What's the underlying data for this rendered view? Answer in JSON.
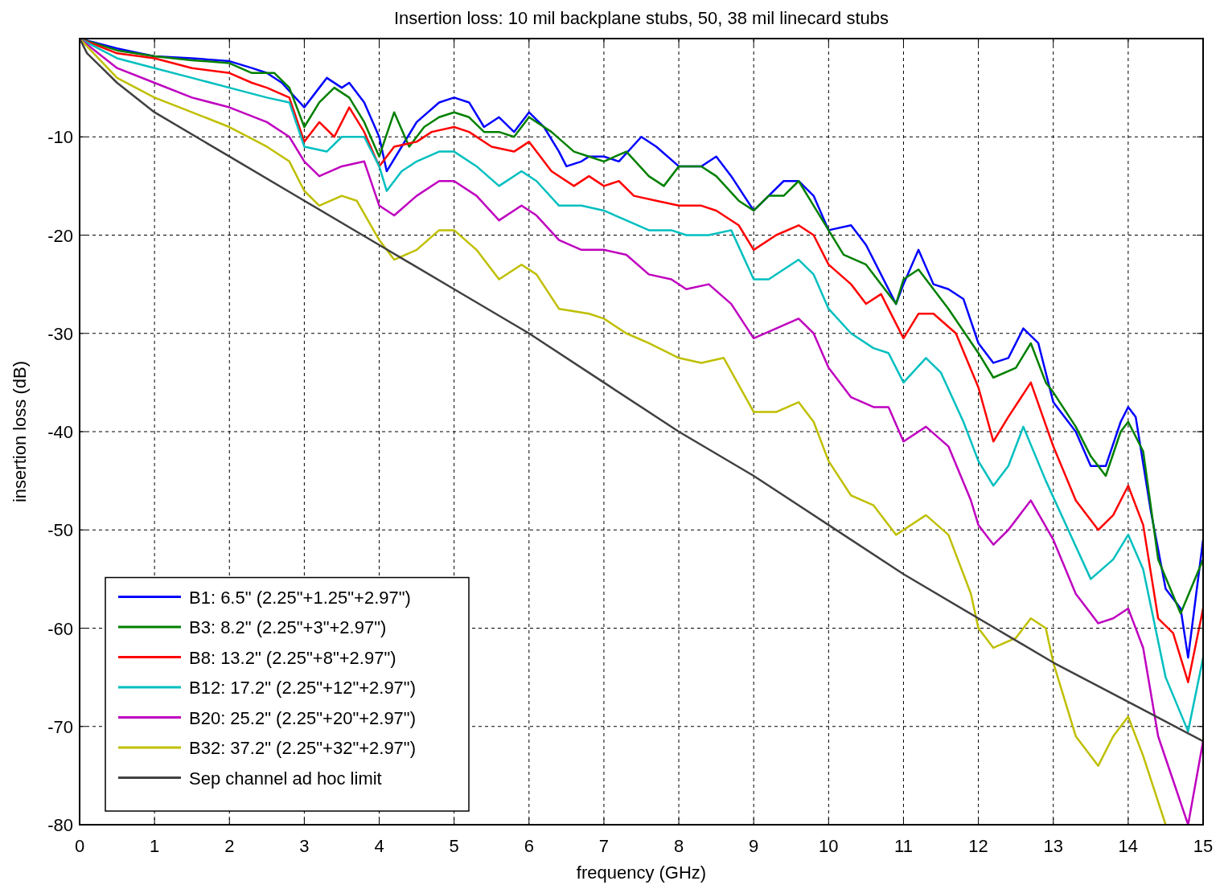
{
  "chart_data": {
    "type": "line",
    "title": "Insertion loss: 10 mil backplane stubs, 50, 38 mil linecard stubs",
    "xlabel": "frequency (GHz)",
    "ylabel": "insertion loss (dB)",
    "xlim": [
      0,
      15
    ],
    "xticks": [
      0,
      1,
      2,
      3,
      4,
      5,
      6,
      7,
      8,
      9,
      10,
      11,
      12,
      13,
      14,
      15
    ],
    "ylim": [
      -80,
      0
    ],
    "yticks": [
      -80,
      -70,
      -60,
      -50,
      -40,
      -30,
      -20,
      -10
    ],
    "grid": true,
    "legend": "bottom left",
    "line_style": "solid",
    "marker": "none",
    "series": [
      {
        "name": "B1: 6.5\" (2.25\"+1.25\"+2.97\")",
        "color": "#0000ff",
        "x": [
          0,
          0.5,
          0.8,
          1,
          1.5,
          2,
          2.3,
          2.5,
          2.7,
          3,
          3.2,
          3.3,
          3.5,
          3.6,
          3.8,
          4,
          4.1,
          4.3,
          4.5,
          4.8,
          5,
          5.2,
          5.4,
          5.6,
          5.8,
          6,
          6.2,
          6.4,
          6.5,
          6.7,
          6.8,
          7,
          7.2,
          7.5,
          7.7,
          8,
          8.3,
          8.5,
          8.7,
          9,
          9.2,
          9.4,
          9.6,
          9.8,
          10,
          10.3,
          10.5,
          10.9,
          11,
          11.2,
          11.4,
          11.6,
          11.8,
          12,
          12.2,
          12.4,
          12.6,
          12.8,
          13,
          13.3,
          13.5,
          13.7,
          13.9,
          14,
          14.1,
          14.3,
          14.5,
          14.7,
          14.8,
          15
        ],
        "values": [
          0,
          -1,
          -1.5,
          -1.8,
          -2,
          -2.3,
          -3,
          -3.5,
          -4.5,
          -7,
          -5,
          -4,
          -5,
          -4.5,
          -6.5,
          -10,
          -13.5,
          -11,
          -8.5,
          -6.5,
          -6,
          -6.5,
          -9,
          -8,
          -9.5,
          -7.5,
          -9,
          -11.5,
          -13,
          -12.5,
          -12,
          -12,
          -12.5,
          -10,
          -11,
          -13,
          -13,
          -12,
          -14,
          -17.5,
          -16,
          -14.5,
          -14.5,
          -16,
          -19.5,
          -19,
          -21,
          -27,
          -25,
          -21.5,
          -25,
          -25.5,
          -26.5,
          -31,
          -33,
          -32.5,
          -29.5,
          -31,
          -37,
          -40,
          -43.5,
          -43.5,
          -39,
          -37.5,
          -38.5,
          -48,
          -56,
          -58,
          -63,
          -51
        ]
      },
      {
        "name": "B3: 8.2\" (2.25\"+3\"+2.97\")",
        "color": "#008000",
        "x": [
          0,
          0.5,
          1,
          1.5,
          2,
          2.3,
          2.6,
          2.8,
          3,
          3.2,
          3.4,
          3.6,
          3.8,
          4,
          4.2,
          4.4,
          4.6,
          4.8,
          5,
          5.2,
          5.4,
          5.6,
          5.8,
          6,
          6.3,
          6.6,
          6.8,
          7,
          7.3,
          7.6,
          7.8,
          8,
          8.3,
          8.5,
          8.8,
          9,
          9.2,
          9.4,
          9.6,
          9.8,
          10,
          10.2,
          10.5,
          10.9,
          11,
          11.2,
          11.4,
          11.6,
          12,
          12.2,
          12.5,
          12.7,
          12.9,
          13,
          13.3,
          13.5,
          13.7,
          13.9,
          14,
          14.2,
          14.4,
          14.7,
          15
        ],
        "values": [
          0,
          -1.2,
          -1.8,
          -2.2,
          -2.5,
          -3.5,
          -3.5,
          -5,
          -9,
          -6.5,
          -5,
          -6,
          -8.5,
          -12,
          -7.5,
          -11,
          -9,
          -8,
          -7.5,
          -8,
          -9.5,
          -9.5,
          -10,
          -8,
          -9.5,
          -11.5,
          -12,
          -12.5,
          -11.5,
          -14,
          -15,
          -13,
          -13,
          -14,
          -16.5,
          -17.5,
          -16,
          -16,
          -14.5,
          -17,
          -19.5,
          -22,
          -23,
          -27,
          -24.5,
          -23.5,
          -25.5,
          -27.5,
          -32,
          -34.5,
          -33.5,
          -31,
          -35,
          -36,
          -39.5,
          -42.5,
          -44.5,
          -40,
          -39,
          -42,
          -53,
          -58.5,
          -53
        ]
      },
      {
        "name": "B8: 13.2\" (2.25\"+8\"+2.97\")",
        "color": "#ff0000",
        "x": [
          0,
          0.5,
          1,
          1.5,
          2,
          2.3,
          2.5,
          2.8,
          3,
          3.2,
          3.4,
          3.6,
          3.8,
          4,
          4.2,
          4.5,
          4.7,
          5,
          5.2,
          5.5,
          5.8,
          6,
          6.3,
          6.6,
          6.8,
          7,
          7.2,
          7.4,
          7.7,
          8,
          8.3,
          8.5,
          8.8,
          9,
          9.3,
          9.6,
          9.8,
          10,
          10.3,
          10.5,
          10.7,
          11,
          11.2,
          11.4,
          11.7,
          12,
          12.2,
          12.4,
          12.7,
          13,
          13.3,
          13.6,
          13.8,
          14,
          14.2,
          14.4,
          14.6,
          14.8,
          15
        ],
        "values": [
          0,
          -1.5,
          -2,
          -3,
          -3.5,
          -4.5,
          -5,
          -6,
          -10.5,
          -8.5,
          -10,
          -7,
          -9.5,
          -13,
          -11,
          -10.5,
          -9.5,
          -9,
          -9.5,
          -11,
          -11.5,
          -10.5,
          -13.5,
          -15,
          -14,
          -15,
          -14.5,
          -16,
          -16.5,
          -17,
          -17,
          -17.5,
          -19,
          -21.5,
          -20,
          -19,
          -20,
          -23,
          -25,
          -27,
          -26,
          -30.5,
          -28,
          -28,
          -30,
          -35.5,
          -41,
          -38.5,
          -35,
          -41.5,
          -47,
          -50,
          -48.5,
          -45.5,
          -49.5,
          -59,
          -60.5,
          -65.5,
          -58
        ]
      },
      {
        "name": "B12: 17.2\" (2.25\"+12\"+2.97\")",
        "color": "#00bfbf",
        "x": [
          0,
          0.5,
          1,
          1.5,
          2,
          2.5,
          2.8,
          3,
          3.3,
          3.5,
          3.8,
          4,
          4.1,
          4.3,
          4.5,
          4.8,
          5,
          5.3,
          5.6,
          5.9,
          6.1,
          6.4,
          6.7,
          7,
          7.3,
          7.6,
          7.9,
          8.1,
          8.4,
          8.7,
          9,
          9.2,
          9.6,
          9.8,
          10,
          10.3,
          10.6,
          10.8,
          11,
          11.3,
          11.5,
          11.8,
          12,
          12.2,
          12.4,
          12.6,
          12.9,
          13.2,
          13.5,
          13.8,
          14,
          14.2,
          14.5,
          14.8,
          15
        ],
        "values": [
          0,
          -2,
          -3,
          -4,
          -5,
          -6,
          -6.5,
          -11,
          -11.5,
          -10,
          -10,
          -13,
          -15.5,
          -13.5,
          -12.5,
          -11.5,
          -11.5,
          -13,
          -15,
          -13.5,
          -14.5,
          -17,
          -17,
          -17.5,
          -18.5,
          -19.5,
          -19.5,
          -20,
          -20,
          -19.5,
          -24.5,
          -24.5,
          -22.5,
          -24,
          -27.5,
          -30,
          -31.5,
          -32,
          -35,
          -32.5,
          -34,
          -39,
          -43,
          -45.5,
          -43.5,
          -39.5,
          -45,
          -50,
          -55,
          -53,
          -50.5,
          -54,
          -65,
          -70.5,
          -63
        ]
      },
      {
        "name": "B20: 25.2\" (2.25\"+20\"+2.97\")",
        "color": "#bf00bf",
        "x": [
          0,
          0.5,
          1,
          1.5,
          2,
          2.5,
          2.8,
          3,
          3.2,
          3.5,
          3.8,
          4,
          4.2,
          4.5,
          4.8,
          5,
          5.3,
          5.6,
          5.9,
          6.1,
          6.4,
          6.7,
          7,
          7.3,
          7.6,
          7.9,
          8.1,
          8.4,
          8.7,
          9,
          9.3,
          9.6,
          9.8,
          10,
          10.3,
          10.6,
          10.8,
          11,
          11.3,
          11.6,
          11.9,
          12,
          12.2,
          12.4,
          12.7,
          13,
          13.3,
          13.6,
          13.8,
          14,
          14.2,
          14.4,
          14.6,
          14.8,
          15
        ],
        "values": [
          0,
          -3,
          -4.5,
          -6,
          -7,
          -8.5,
          -10,
          -12.5,
          -14,
          -13,
          -12.5,
          -17,
          -18,
          -16,
          -14.5,
          -14.5,
          -16,
          -18.5,
          -17,
          -18,
          -20.5,
          -21.5,
          -21.5,
          -22,
          -24,
          -24.5,
          -25.5,
          -25,
          -27,
          -30.5,
          -29.5,
          -28.5,
          -30,
          -33.5,
          -36.5,
          -37.5,
          -37.5,
          -41,
          -39.5,
          -41.5,
          -47,
          -49.5,
          -51.5,
          -50,
          -47,
          -51,
          -56.5,
          -59.5,
          -59,
          -58,
          -62,
          -71,
          -75.5,
          -80,
          -71.5
        ]
      },
      {
        "name": "B32: 37.2\" (2.25\"+32\"+2.97\")",
        "color": "#bfbf00",
        "x": [
          0,
          0.5,
          1,
          1.5,
          2,
          2.5,
          2.8,
          3,
          3.2,
          3.5,
          3.7,
          4,
          4.2,
          4.5,
          4.8,
          5,
          5.3,
          5.6,
          5.9,
          6.1,
          6.4,
          6.8,
          7,
          7.3,
          7.6,
          8,
          8.3,
          8.6,
          9,
          9.3,
          9.6,
          9.8,
          10,
          10.3,
          10.6,
          10.9,
          11,
          11.3,
          11.6,
          11.9,
          12,
          12.2,
          12.5,
          12.7,
          12.9,
          13,
          13.3,
          13.6,
          13.8,
          14,
          14.2,
          14.5
        ],
        "values": [
          0,
          -4,
          -6,
          -7.5,
          -9,
          -11,
          -12.5,
          -15.5,
          -17,
          -16,
          -16.5,
          -20.5,
          -22.5,
          -21.5,
          -19.5,
          -19.5,
          -21.5,
          -24.5,
          -23,
          -24,
          -27.5,
          -28,
          -28.5,
          -30,
          -31,
          -32.5,
          -33,
          -32.5,
          -38,
          -38,
          -37,
          -39,
          -43,
          -46.5,
          -47.5,
          -50.5,
          -50,
          -48.5,
          -50.5,
          -56.5,
          -60,
          -62,
          -61,
          -59,
          -60,
          -63.5,
          -71,
          -74,
          -71,
          -69,
          -73,
          -80
        ]
      },
      {
        "name": "Sep channel ad hoc limit",
        "color": "#404040",
        "x": [
          0,
          0.1,
          0.3,
          0.5,
          1,
          2,
          3,
          4,
          5,
          6,
          7,
          8,
          9,
          10,
          11,
          12,
          13,
          14,
          15
        ],
        "values": [
          0,
          -1.5,
          -3,
          -4.5,
          -7.5,
          -12,
          -16.5,
          -21,
          -25.5,
          -30,
          -35,
          -40,
          -44.5,
          -49.5,
          -54.5,
          -59,
          -63.5,
          -67.5,
          -71.5
        ]
      }
    ]
  }
}
